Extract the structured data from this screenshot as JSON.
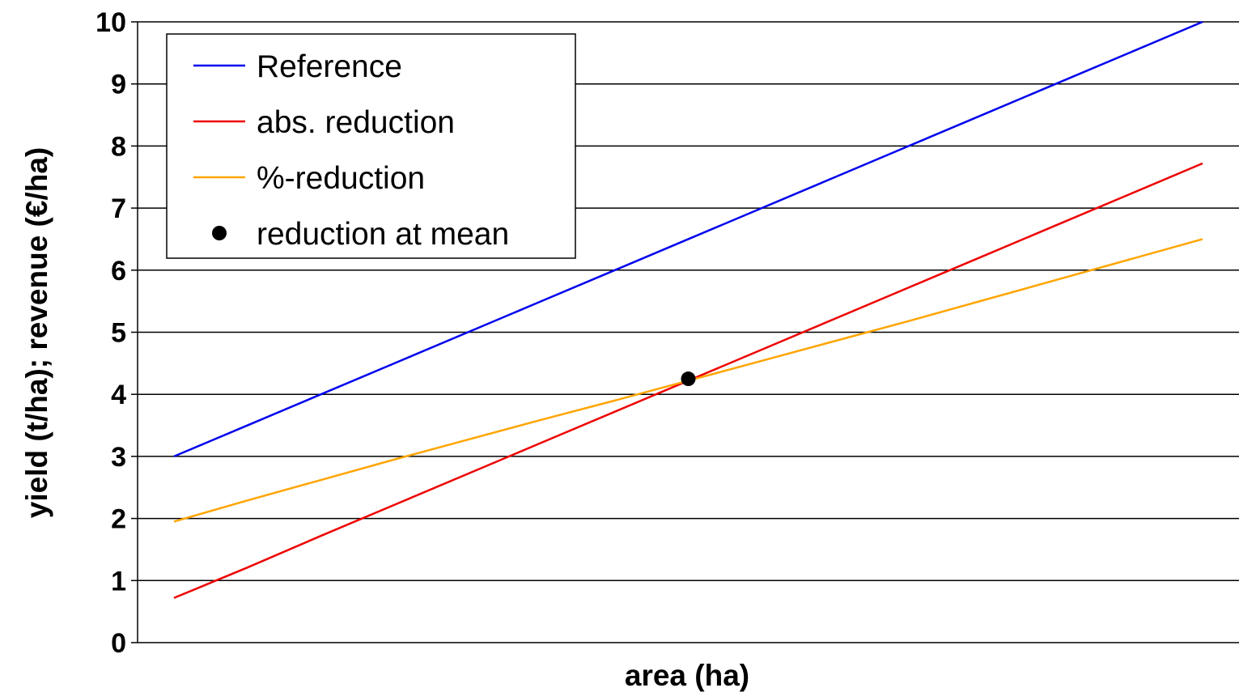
{
  "chart_data": {
    "type": "line",
    "title": "",
    "xlabel": "area (ha)",
    "ylabel": "yield (t/ha); revenue (€/ha)",
    "ylim": [
      0,
      10
    ],
    "yticks": [
      "0",
      "1",
      "2",
      "3",
      "4",
      "5",
      "6",
      "7",
      "8",
      "9",
      "10"
    ],
    "x_tick_labels_visible": false,
    "grid": "horizontal",
    "legend_position": "top-left",
    "x": [
      0,
      1,
      2,
      3,
      4,
      5,
      6,
      7,
      8,
      9,
      10,
      11,
      12,
      13,
      14
    ],
    "series": [
      {
        "name": "Reference",
        "color": "#0000ee",
        "kind": "line",
        "values": [
          3.0,
          3.5,
          4.0,
          4.5,
          5.0,
          5.5,
          6.0,
          6.5,
          7.0,
          7.5,
          8.0,
          8.5,
          9.0,
          9.5,
          10.0
        ]
      },
      {
        "name": "abs. reduction",
        "color": "#ee0000",
        "kind": "line",
        "values": [
          0.72,
          1.21,
          1.72,
          2.22,
          2.72,
          3.22,
          3.72,
          4.22,
          4.72,
          5.22,
          5.72,
          6.22,
          6.72,
          7.22,
          7.72
        ]
      },
      {
        "name": "%-reduction",
        "color": "#ffa500",
        "kind": "line",
        "values": [
          1.95,
          2.29,
          2.62,
          2.95,
          3.27,
          3.59,
          3.9,
          4.22,
          4.54,
          4.86,
          5.18,
          5.51,
          5.84,
          6.17,
          6.5
        ]
      },
      {
        "name": "reduction at mean",
        "color": "#000000",
        "kind": "point",
        "values": [
          null,
          null,
          null,
          null,
          null,
          null,
          null,
          4.25,
          null,
          null,
          null,
          null,
          null,
          null,
          null
        ]
      }
    ]
  }
}
